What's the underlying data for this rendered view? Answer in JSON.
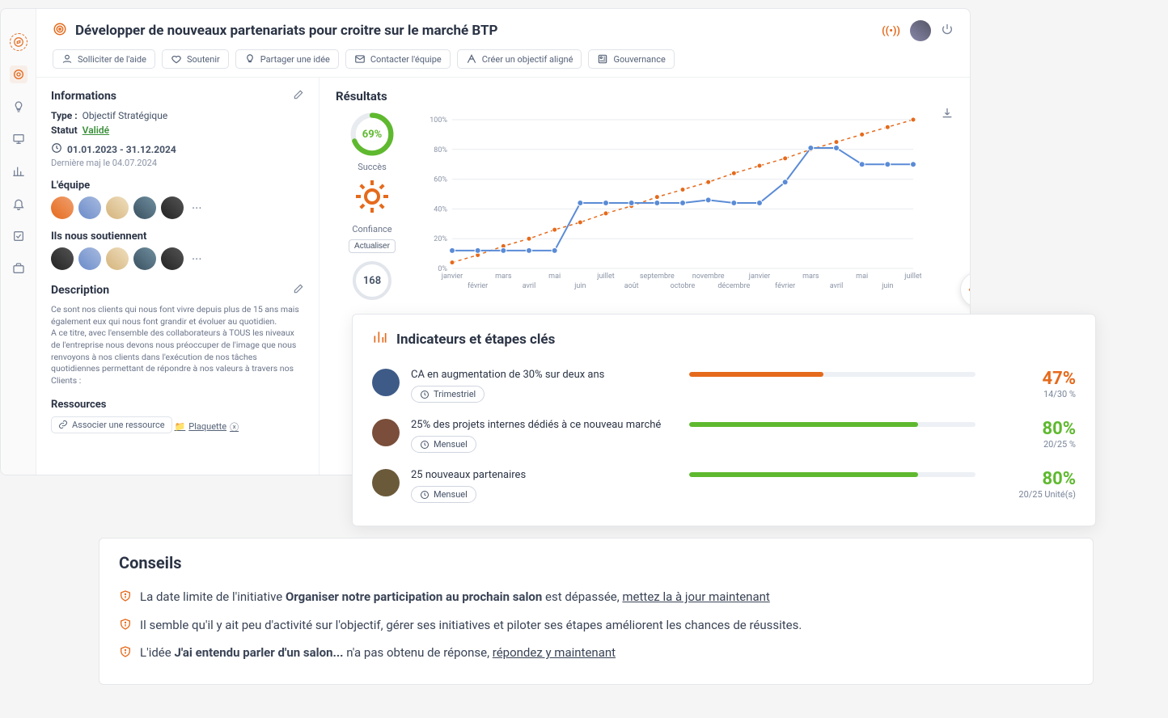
{
  "colors": {
    "accent_orange": "#e56a1c",
    "green": "#5fb92f",
    "green_dark": "#3a8f3a",
    "blue_line": "#5a8bd6",
    "grid": "#e8ebef",
    "text_main": "#2b3445",
    "text_muted": "#7a8599"
  },
  "sidebar": {
    "items": [
      "compass-icon",
      "target-icon",
      "bulb-icon",
      "presentation-icon",
      "chart-icon",
      "bell-icon",
      "check-icon",
      "briefcase-icon"
    ]
  },
  "header": {
    "title": "Développer de nouveaux partenariats pour croitre sur le marché BTP",
    "actions": {
      "help": "Solliciter de l'aide",
      "support": "Soutenir",
      "share_idea": "Partager une idée",
      "contact": "Contacter l'équipe",
      "create_aligned": "Créer un objectif aligné",
      "governance": "Gouvernance"
    }
  },
  "info_panel": {
    "heading": "Informations",
    "type_label": "Type :",
    "type_value": "Objectif Stratégique",
    "status_label": "Statut",
    "status_value": "Validé",
    "date_range": "01.01.2023 - 31.12.2024",
    "last_update": "Dernière maj le 04.07.2024",
    "team_heading": "L'équipe",
    "supporters_heading": "Ils nous soutiennent",
    "description_heading": "Description",
    "description_text": "Ce sont nos clients qui nous font vivre depuis plus de 15 ans mais également eux qui nous font grandir et évoluer au quotidien.\nA ce titre, avec l'ensemble des collaborateurs à TOUS les niveaux de l'entreprise nous devons nous préoccuper de l'image que nous renvoyons à nos clients dans l'exécution de nos tâches quotidiennes permettant de répondre à nos valeurs à travers nos Clients :",
    "resources_heading": "Ressources",
    "associate_resource": "Associer une ressource",
    "resource_name": "Plaquette"
  },
  "results": {
    "heading": "Résultats",
    "success_pct": "69%",
    "success_pct_num": 69,
    "success_label": "Succès",
    "confidence_label": "Confiance",
    "update_btn": "Actualiser",
    "days": "168",
    "chart": {
      "type": "line",
      "ylim": [
        0,
        100
      ],
      "yticks": [
        0,
        20,
        40,
        60,
        80,
        100
      ],
      "ytick_labels": [
        "0%",
        "20%",
        "40%",
        "60%",
        "80%",
        "100%"
      ],
      "x_labels_top": [
        "janvier",
        "mars",
        "mai",
        "juillet",
        "septembre",
        "novembre",
        "janvier",
        "mars",
        "mai",
        "juillet"
      ],
      "x_labels_bottom": [
        "février",
        "avril",
        "juin",
        "août",
        "octobre",
        "décembre",
        "février",
        "avril",
        "juin"
      ],
      "target_series": {
        "color": "#e56a1c",
        "dash": "4,4",
        "marker": "circle",
        "marker_size": 3,
        "points": [
          [
            0,
            4
          ],
          [
            1,
            9
          ],
          [
            2,
            15
          ],
          [
            3,
            20
          ],
          [
            4,
            26
          ],
          [
            5,
            31
          ],
          [
            6,
            37
          ],
          [
            7,
            42
          ],
          [
            8,
            48
          ],
          [
            9,
            53
          ],
          [
            10,
            58
          ],
          [
            11,
            64
          ],
          [
            12,
            69
          ],
          [
            13,
            74
          ],
          [
            14,
            80
          ],
          [
            15,
            85
          ],
          [
            16,
            90
          ],
          [
            17,
            95
          ],
          [
            18,
            100
          ]
        ]
      },
      "actual_series": {
        "color": "#5a8bd6",
        "line_width": 2,
        "marker": "circle",
        "marker_size": 3.5,
        "points": [
          [
            0,
            12
          ],
          [
            1,
            12
          ],
          [
            2,
            12
          ],
          [
            3,
            12
          ],
          [
            4,
            12
          ],
          [
            5,
            44
          ],
          [
            6,
            44
          ],
          [
            7,
            44
          ],
          [
            8,
            44
          ],
          [
            9,
            44
          ],
          [
            10,
            46
          ],
          [
            11,
            44
          ],
          [
            12,
            44
          ],
          [
            13,
            58
          ],
          [
            14,
            81
          ],
          [
            15,
            81
          ],
          [
            16,
            70
          ],
          [
            17,
            70
          ],
          [
            18,
            70
          ]
        ]
      },
      "grid_color": "#e8ebef",
      "background": "#ffffff",
      "axis_font_size": 9,
      "axis_color": "#8a93a5"
    }
  },
  "indicators": {
    "heading": "Indicateurs et étapes clés",
    "rows": [
      {
        "title": "CA en augmentation de 30% sur deux ans",
        "frequency": "Trimestriel",
        "pct": "47%",
        "pct_color": "#e56a1c",
        "fill": 47,
        "fill_color": "#e56a1c",
        "sub": "14/30 %",
        "avatar": "#3e5b88"
      },
      {
        "title": "25% des projets internes dédiés à ce nouveau marché",
        "frequency": "Mensuel",
        "pct": "80%",
        "pct_color": "#5fb92f",
        "fill": 80,
        "fill_color": "#5fb92f",
        "sub": "20/25 %",
        "avatar": "#7a4e3a"
      },
      {
        "title": "25 nouveaux partenaires",
        "frequency": "Mensuel",
        "pct": "80%",
        "pct_color": "#5fb92f",
        "fill": 80,
        "fill_color": "#5fb92f",
        "sub": "20/25 Unité(s)",
        "avatar": "#6b5a3a"
      }
    ]
  },
  "conseils": {
    "heading": "Conseils",
    "items": [
      {
        "pre": "La date limite de l'initiative ",
        "bold": "Organiser notre participation au prochain salon",
        "post": " est dépassée, ",
        "link": "mettez la à jour maintenant"
      },
      {
        "pre": "Il semble qu'il y ait peu d'activité sur l'objectif, gérer ses initiatives et piloter ses étapes améliorent les chances de réussites.",
        "bold": "",
        "post": "",
        "link": ""
      },
      {
        "pre": "L'idée ",
        "bold": "J'ai entendu parler d'un salon...",
        "post": " n'a pas obtenu de réponse, ",
        "link": "répondez y maintenant"
      }
    ]
  }
}
